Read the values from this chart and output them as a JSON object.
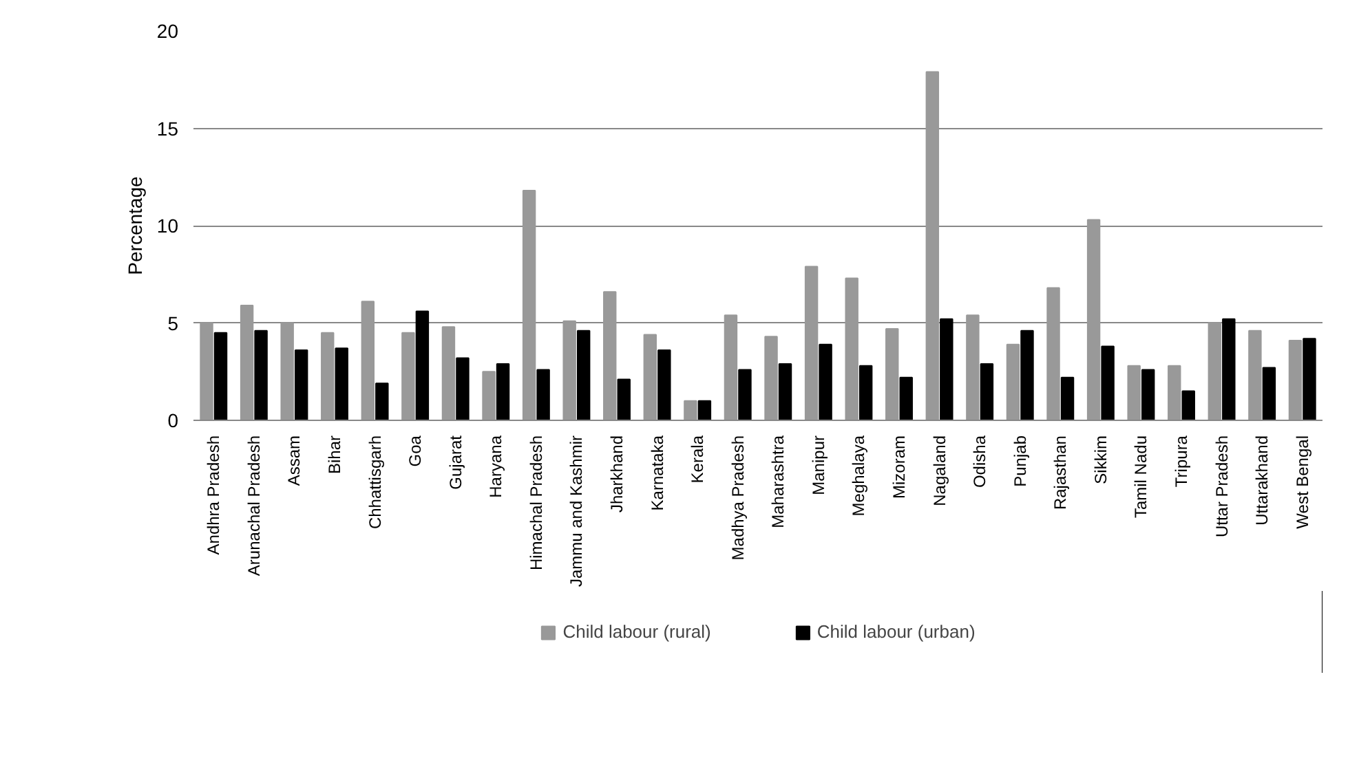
{
  "chart_data": {
    "type": "bar",
    "ylabel": "Percentage",
    "categories": [
      "Andhra Pradesh",
      "Arunachal Pradesh",
      "Assam",
      "Bihar",
      "Chhattisgarh",
      "Goa",
      "Gujarat",
      "Haryana",
      "Himachal Pradesh",
      "Jammu and Kashmir",
      "Jharkhand",
      "Karnataka",
      "Kerala",
      "Madhya Pradesh",
      "Maharashtra",
      "Manipur",
      "Meghalaya",
      "Mizoram",
      "Nagaland",
      "Odisha",
      "Punjab",
      "Rajasthan",
      "Sikkim",
      "Tamil Nadu",
      "Tripura",
      "Uttar Pradesh",
      "Uttarakhand",
      "West Bengal"
    ],
    "series": [
      {
        "name": "Child labour (rural)",
        "color": "#999999",
        "values": [
          5.0,
          5.9,
          5.0,
          4.5,
          6.1,
          4.5,
          4.8,
          2.5,
          11.8,
          5.1,
          6.6,
          4.4,
          1.0,
          5.4,
          4.3,
          7.9,
          7.3,
          4.7,
          17.9,
          5.4,
          3.9,
          6.8,
          10.3,
          2.8,
          2.8,
          5.0,
          4.6,
          4.1
        ]
      },
      {
        "name": "Child labour (urban)",
        "color": "#000000",
        "values": [
          4.5,
          4.6,
          3.6,
          3.7,
          1.9,
          5.6,
          3.2,
          2.9,
          2.6,
          4.6,
          2.1,
          3.6,
          1.0,
          2.6,
          2.9,
          3.9,
          2.8,
          2.2,
          5.2,
          2.9,
          4.6,
          2.2,
          3.8,
          2.6,
          1.5,
          5.2,
          2.7,
          4.2
        ]
      }
    ],
    "ylim": [
      0,
      20
    ],
    "yticks": [
      0,
      5,
      10,
      15,
      20
    ],
    "grid": "y",
    "legend": "bottom"
  }
}
